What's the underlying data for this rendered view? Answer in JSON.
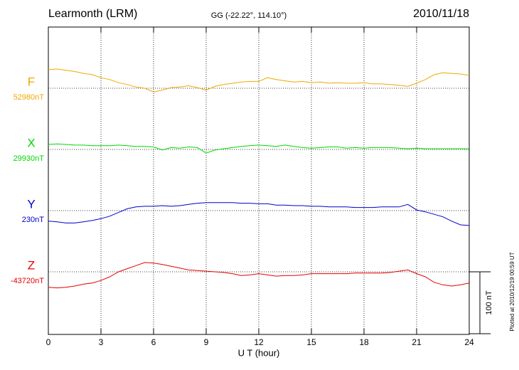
{
  "chart_data": {
    "type": "line",
    "title": "Learmonth (LRM)",
    "subtitle": "GG (-22.22°, 114.10°)",
    "date": "2010/11/18",
    "x_label": "U T (hour)",
    "plotted_note": "Plotted at 2010/12/19 00:59 UT",
    "xlim": [
      0,
      24
    ],
    "xticks": [
      0,
      3,
      6,
      9,
      12,
      15,
      18,
      21,
      24
    ],
    "grid": true,
    "scale_bar": {
      "value": 100,
      "label": "100 nT"
    },
    "x": [
      0,
      0.5,
      1,
      1.5,
      2,
      2.5,
      3,
      3.5,
      4,
      4.5,
      5,
      5.5,
      6,
      6.5,
      7,
      7.5,
      8,
      8.5,
      9,
      9.5,
      10,
      10.5,
      11,
      11.5,
      12,
      12.5,
      13,
      13.5,
      14,
      14.5,
      15,
      15.5,
      16,
      16.5,
      17,
      17.5,
      18,
      18.5,
      19,
      19.5,
      20,
      20.5,
      21,
      21.5,
      22,
      22.5,
      23,
      23.5,
      24
    ],
    "series": [
      {
        "name": "F",
        "color": "#f0a800",
        "baseline": {
          "value": 52980,
          "label": "52980nT"
        },
        "values": [
          53010,
          53011,
          53009,
          53007,
          53004,
          53002,
          52997,
          52994,
          52989,
          52986,
          52982,
          52980,
          52974,
          52977,
          52981,
          52982,
          52984,
          52981,
          52977,
          52983,
          52986,
          52988,
          52990,
          52991,
          52991,
          52997,
          52994,
          52992,
          52990,
          52991,
          52989,
          52990,
          52988,
          52989,
          52988,
          52988,
          52989,
          52987,
          52987,
          52986,
          52985,
          52983,
          52988,
          52994,
          53002,
          53005,
          53004,
          53003,
          53001
        ]
      },
      {
        "name": "X",
        "color": "#00d800",
        "baseline": {
          "value": 29930,
          "label": "29930nT"
        },
        "values": [
          29938,
          29939,
          29938,
          29937,
          29937,
          29936,
          29936,
          29936,
          29937,
          29936,
          29935,
          29935,
          29934,
          29929,
          29933,
          29932,
          29934,
          29933,
          29924,
          29929,
          29931,
          29933,
          29935,
          29936,
          29937,
          29936,
          29935,
          29937,
          29935,
          29933,
          29932,
          29933,
          29934,
          29934,
          29932,
          29933,
          29932,
          29933,
          29933,
          29933,
          29932,
          29931,
          29932,
          29931,
          29931,
          29931,
          29931,
          29931,
          29931
        ]
      },
      {
        "name": "Y",
        "color": "#0000cc",
        "baseline": {
          "value": 230,
          "label": "230nT"
        },
        "values": [
          213,
          212,
          210,
          210,
          212,
          214,
          217,
          221,
          227,
          233,
          236,
          237,
          237,
          238,
          237,
          238,
          240,
          242,
          243,
          243,
          243,
          243,
          242,
          242,
          241,
          241,
          239,
          239,
          238,
          238,
          237,
          237,
          236,
          236,
          236,
          235,
          235,
          235,
          236,
          236,
          236,
          240,
          231,
          228,
          224,
          220,
          213,
          207,
          206
        ]
      },
      {
        "name": "Z",
        "color": "#e80000",
        "baseline": {
          "value": -43720,
          "label": "-43720nT"
        },
        "values": [
          -43745,
          -43746,
          -43745,
          -43743,
          -43740,
          -43738,
          -43734,
          -43728,
          -43720,
          -43715,
          -43710,
          -43705,
          -43706,
          -43708,
          -43711,
          -43714,
          -43717,
          -43718,
          -43719,
          -43720,
          -43721,
          -43723,
          -43726,
          -43725,
          -43723,
          -43725,
          -43727,
          -43726,
          -43726,
          -43725,
          -43723,
          -43723,
          -43723,
          -43723,
          -43723,
          -43722,
          -43722,
          -43722,
          -43722,
          -43721,
          -43719,
          -43717,
          -43723,
          -43728,
          -43737,
          -43741,
          -43743,
          -43741,
          -43738
        ]
      }
    ]
  }
}
